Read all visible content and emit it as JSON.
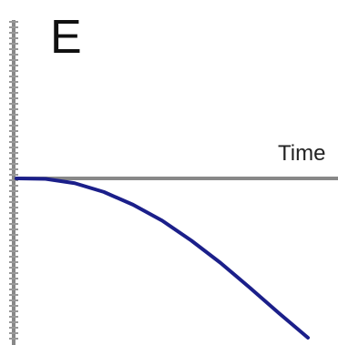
{
  "chart_data": {
    "type": "line",
    "panel_label": "E",
    "title": "",
    "xlabel": "Time",
    "ylabel": "",
    "xlim": [
      0,
      1
    ],
    "ylim": [
      -1,
      0.05
    ],
    "grid": false,
    "legend": "none",
    "series": [
      {
        "color": "#1b1f8a",
        "x": [
          0,
          0.1,
          0.2,
          0.3,
          0.4,
          0.5,
          0.6,
          0.7,
          0.8,
          0.9,
          1.0
        ],
        "y": [
          0,
          -0.003,
          -0.03,
          -0.085,
          -0.165,
          -0.265,
          -0.39,
          -0.53,
          -0.685,
          -0.845,
          -1.0
        ]
      }
    ],
    "axis_colors": {
      "axis": "#888888",
      "frame": "#888888",
      "ticks": "#999999"
    }
  }
}
